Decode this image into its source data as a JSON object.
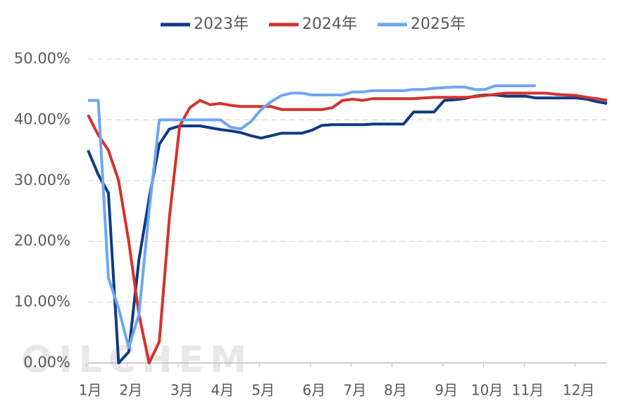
{
  "chart_data": {
    "type": "line",
    "watermark": "OILCHEM",
    "categories": [
      "1月",
      null,
      null,
      null,
      "2月",
      null,
      null,
      null,
      null,
      "3月",
      null,
      null,
      null,
      "4月",
      null,
      null,
      null,
      "5月",
      null,
      null,
      null,
      null,
      "6月",
      null,
      null,
      null,
      "7月",
      null,
      null,
      null,
      "8月",
      null,
      null,
      null,
      null,
      "9月",
      null,
      null,
      null,
      "10月",
      null,
      null,
      null,
      "11月",
      null,
      null,
      null,
      null,
      "12月",
      null,
      null,
      null
    ],
    "series": [
      {
        "name": "2023年",
        "color": "#0e3a84",
        "values": [
          35,
          31,
          28,
          0,
          1.8,
          17,
          27,
          36,
          38.5,
          39,
          39,
          39,
          38.7,
          38.4,
          38.2,
          37.9,
          37.4,
          37,
          37.4,
          37.8,
          37.8,
          37.8,
          38.3,
          39.1,
          39.2,
          39.2,
          39.2,
          39.2,
          39.3,
          39.3,
          39.3,
          39.3,
          41.3,
          41.3,
          41.3,
          43.2,
          43.3,
          43.5,
          43.9,
          44.1,
          44.1,
          43.9,
          43.9,
          43.9,
          43.6,
          43.6,
          43.6,
          43.6,
          43.6,
          43.4,
          43,
          42.7
        ]
      },
      {
        "name": "2024年",
        "color": "#d4322b",
        "values": [
          40.8,
          37.5,
          35,
          30,
          20,
          8,
          0,
          3.5,
          24,
          39,
          42,
          43.2,
          42.5,
          42.7,
          42.4,
          42.2,
          42.2,
          42.2,
          42.2,
          41.7,
          41.7,
          41.7,
          41.7,
          41.7,
          42,
          43.2,
          43.4,
          43.2,
          43.5,
          43.5,
          43.5,
          43.5,
          43.5,
          43.6,
          43.7,
          43.7,
          43.7,
          43.7,
          43.8,
          44,
          44.2,
          44.4,
          44.4,
          44.4,
          44.4,
          44.4,
          44.2,
          44.1,
          44,
          43.7,
          43.5,
          43.2
        ]
      },
      {
        "name": "2025年",
        "color": "#6ea6f4",
        "values": [
          43.2,
          43.2,
          14,
          9,
          2.5,
          8,
          25,
          40,
          40,
          40,
          40,
          40,
          40,
          40,
          38.8,
          38.5,
          39.7,
          41.7,
          43,
          44,
          44.4,
          44.4,
          44.1,
          44.1,
          44.1,
          44.1,
          44.6,
          44.6,
          44.8,
          44.8,
          44.8,
          44.8,
          45,
          45,
          45.2,
          45.3,
          45.4,
          45.4,
          45,
          45,
          45.6,
          45.6,
          45.6,
          45.6,
          45.6,
          null,
          null,
          null,
          null,
          null,
          null,
          null
        ]
      }
    ],
    "ylim": [
      0,
      50
    ],
    "yticks": [
      {
        "value": 0,
        "label": "0.00%"
      },
      {
        "value": 10,
        "label": "10.00%"
      },
      {
        "value": 20,
        "label": "20.00%"
      },
      {
        "value": 30,
        "label": "30.00%"
      },
      {
        "value": 40,
        "label": "40.00%"
      },
      {
        "value": 50,
        "label": "50.00%"
      }
    ],
    "grid": true
  }
}
